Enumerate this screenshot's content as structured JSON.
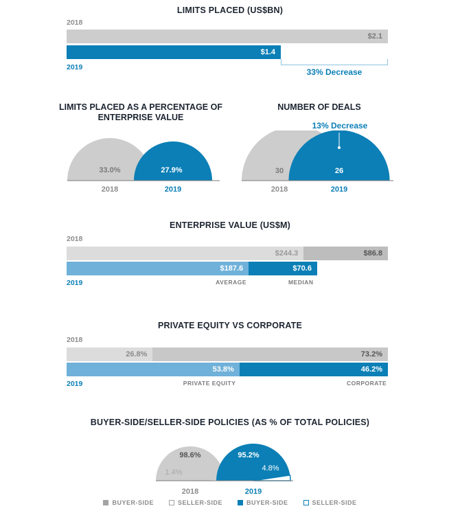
{
  "chart_data": [
    {
      "type": "bar",
      "title": "LIMITS PLACED (US$BN)",
      "categories": [
        "2018",
        "2019"
      ],
      "values": [
        2.1,
        1.4
      ],
      "value_labels": [
        "$2.1",
        "$1.4"
      ],
      "annotation": "33% Decrease"
    },
    {
      "type": "pie",
      "title": "LIMITS PLACED AS A PERCENTAGE OF ENTERPRISE VALUE",
      "categories": [
        "2018",
        "2019"
      ],
      "values": [
        33.0,
        27.9
      ],
      "value_labels": [
        "33.0%",
        "27.9%"
      ]
    },
    {
      "type": "pie",
      "title": "NUMBER OF DEALS",
      "categories": [
        "2018",
        "2019"
      ],
      "values": [
        30,
        26
      ],
      "value_labels": [
        "30",
        "26"
      ],
      "annotation": "13% Decrease"
    },
    {
      "type": "bar",
      "title": "ENTERPRISE VALUE (US$M)",
      "categories": [
        "2018",
        "2019"
      ],
      "series": [
        {
          "name": "AVERAGE",
          "values": [
            244.3,
            187.6
          ],
          "value_labels": [
            "$244.3",
            "$187.6"
          ]
        },
        {
          "name": "MEDIAN",
          "values": [
            86.8,
            70.6
          ],
          "value_labels": [
            "$86.8",
            "$70.6"
          ]
        }
      ]
    },
    {
      "type": "bar",
      "title": "PRIVATE EQUITY VS CORPORATE",
      "categories": [
        "2018",
        "2019"
      ],
      "series": [
        {
          "name": "PRIVATE EQUITY",
          "values": [
            26.8,
            53.8
          ],
          "value_labels": [
            "26.8%",
            "53.8%"
          ]
        },
        {
          "name": "CORPORATE",
          "values": [
            73.2,
            46.2
          ],
          "value_labels": [
            "73.2%",
            "46.2%"
          ]
        }
      ]
    },
    {
      "type": "pie",
      "title": "BUYER-SIDE/SELLER-SIDE POLICIES (AS % OF TOTAL POLICIES)",
      "categories": [
        "2018",
        "2019"
      ],
      "series": [
        {
          "name": "BUYER-SIDE",
          "values": [
            98.6,
            95.2
          ],
          "value_labels": [
            "98.6%",
            "95.2%"
          ]
        },
        {
          "name": "SELLER-SIDE",
          "values": [
            1.4,
            4.8
          ],
          "value_labels": [
            "1.4%",
            "4.8%"
          ]
        }
      ]
    }
  ],
  "legend": [
    {
      "label": "BUYER-SIDE",
      "color": "#a3a3a3",
      "fill": true
    },
    {
      "label": "SELLER-SIDE",
      "color": "#a3a3a3",
      "fill": false
    },
    {
      "label": "BUYER-SIDE",
      "color": "#0b7fb6",
      "fill": true
    },
    {
      "label": "SELLER-SIDE",
      "color": "#0b7fb6",
      "fill": false
    }
  ],
  "colors": {
    "gray": "#cdcdcd",
    "gray_dark": "#bdbdbd",
    "gray_light": "#dcdcdc",
    "blue": "#0b7fb6",
    "blue_light": "#6fb1d9"
  }
}
